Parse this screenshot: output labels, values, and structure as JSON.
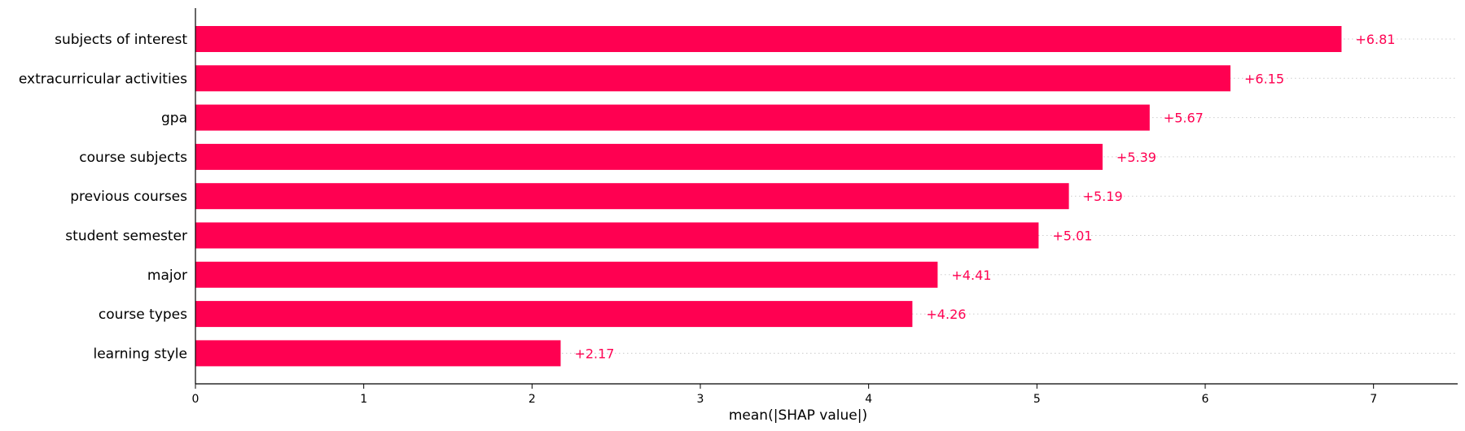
{
  "chart_data": {
    "type": "bar",
    "orientation": "horizontal",
    "categories": [
      "subjects of interest",
      "extracurricular activities",
      "gpa",
      "course subjects",
      "previous courses",
      "student semester",
      "major",
      "course types",
      "learning style"
    ],
    "values": [
      6.81,
      6.15,
      5.67,
      5.39,
      5.19,
      5.01,
      4.41,
      4.26,
      2.17
    ],
    "value_labels": [
      "+6.81",
      "+6.15",
      "+5.67",
      "+5.39",
      "+5.19",
      "+5.01",
      "+4.41",
      "+4.26",
      "+2.17"
    ],
    "title": "",
    "xlabel": "mean(|SHAP value|)",
    "ylabel": "",
    "xlim": [
      0,
      7.5
    ],
    "xticks": [
      0,
      1,
      2,
      3,
      4,
      5,
      6,
      7
    ],
    "xtick_labels": [
      "0",
      "1",
      "2",
      "3",
      "4",
      "5",
      "6",
      "7"
    ],
    "grid": "dotted row guide lines to the right of each bar",
    "bar_color": "#ff0051",
    "label_color": "#ff0051"
  }
}
